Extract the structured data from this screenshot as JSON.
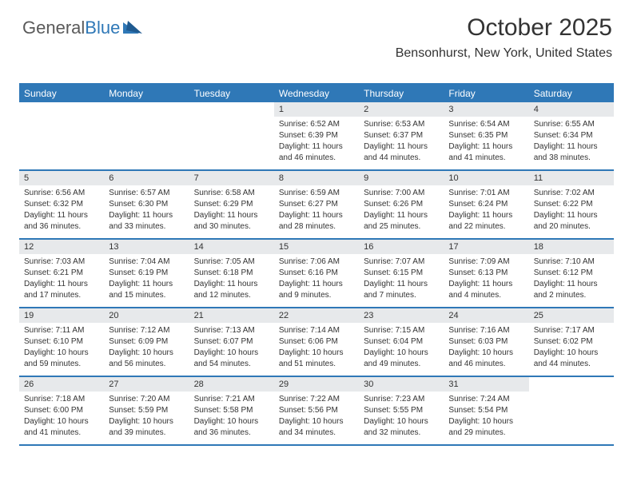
{
  "logo": {
    "general": "General",
    "blue": "Blue"
  },
  "title": "October 2025",
  "location": "Bensonhurst, New York, United States",
  "colors": {
    "accent": "#2f78b7",
    "dayBar": "#e7e9eb",
    "text": "#333333",
    "bg": "#ffffff"
  },
  "dow": [
    "Sunday",
    "Monday",
    "Tuesday",
    "Wednesday",
    "Thursday",
    "Friday",
    "Saturday"
  ],
  "weeks": [
    [
      {
        "blank": true
      },
      {
        "blank": true
      },
      {
        "blank": true
      },
      {
        "n": "1",
        "sr": "Sunrise: 6:52 AM",
        "ss": "Sunset: 6:39 PM",
        "d1": "Daylight: 11 hours",
        "d2": "and 46 minutes."
      },
      {
        "n": "2",
        "sr": "Sunrise: 6:53 AM",
        "ss": "Sunset: 6:37 PM",
        "d1": "Daylight: 11 hours",
        "d2": "and 44 minutes."
      },
      {
        "n": "3",
        "sr": "Sunrise: 6:54 AM",
        "ss": "Sunset: 6:35 PM",
        "d1": "Daylight: 11 hours",
        "d2": "and 41 minutes."
      },
      {
        "n": "4",
        "sr": "Sunrise: 6:55 AM",
        "ss": "Sunset: 6:34 PM",
        "d1": "Daylight: 11 hours",
        "d2": "and 38 minutes."
      }
    ],
    [
      {
        "n": "5",
        "sr": "Sunrise: 6:56 AM",
        "ss": "Sunset: 6:32 PM",
        "d1": "Daylight: 11 hours",
        "d2": "and 36 minutes."
      },
      {
        "n": "6",
        "sr": "Sunrise: 6:57 AM",
        "ss": "Sunset: 6:30 PM",
        "d1": "Daylight: 11 hours",
        "d2": "and 33 minutes."
      },
      {
        "n": "7",
        "sr": "Sunrise: 6:58 AM",
        "ss": "Sunset: 6:29 PM",
        "d1": "Daylight: 11 hours",
        "d2": "and 30 minutes."
      },
      {
        "n": "8",
        "sr": "Sunrise: 6:59 AM",
        "ss": "Sunset: 6:27 PM",
        "d1": "Daylight: 11 hours",
        "d2": "and 28 minutes."
      },
      {
        "n": "9",
        "sr": "Sunrise: 7:00 AM",
        "ss": "Sunset: 6:26 PM",
        "d1": "Daylight: 11 hours",
        "d2": "and 25 minutes."
      },
      {
        "n": "10",
        "sr": "Sunrise: 7:01 AM",
        "ss": "Sunset: 6:24 PM",
        "d1": "Daylight: 11 hours",
        "d2": "and 22 minutes."
      },
      {
        "n": "11",
        "sr": "Sunrise: 7:02 AM",
        "ss": "Sunset: 6:22 PM",
        "d1": "Daylight: 11 hours",
        "d2": "and 20 minutes."
      }
    ],
    [
      {
        "n": "12",
        "sr": "Sunrise: 7:03 AM",
        "ss": "Sunset: 6:21 PM",
        "d1": "Daylight: 11 hours",
        "d2": "and 17 minutes."
      },
      {
        "n": "13",
        "sr": "Sunrise: 7:04 AM",
        "ss": "Sunset: 6:19 PM",
        "d1": "Daylight: 11 hours",
        "d2": "and 15 minutes."
      },
      {
        "n": "14",
        "sr": "Sunrise: 7:05 AM",
        "ss": "Sunset: 6:18 PM",
        "d1": "Daylight: 11 hours",
        "d2": "and 12 minutes."
      },
      {
        "n": "15",
        "sr": "Sunrise: 7:06 AM",
        "ss": "Sunset: 6:16 PM",
        "d1": "Daylight: 11 hours",
        "d2": "and 9 minutes."
      },
      {
        "n": "16",
        "sr": "Sunrise: 7:07 AM",
        "ss": "Sunset: 6:15 PM",
        "d1": "Daylight: 11 hours",
        "d2": "and 7 minutes."
      },
      {
        "n": "17",
        "sr": "Sunrise: 7:09 AM",
        "ss": "Sunset: 6:13 PM",
        "d1": "Daylight: 11 hours",
        "d2": "and 4 minutes."
      },
      {
        "n": "18",
        "sr": "Sunrise: 7:10 AM",
        "ss": "Sunset: 6:12 PM",
        "d1": "Daylight: 11 hours",
        "d2": "and 2 minutes."
      }
    ],
    [
      {
        "n": "19",
        "sr": "Sunrise: 7:11 AM",
        "ss": "Sunset: 6:10 PM",
        "d1": "Daylight: 10 hours",
        "d2": "and 59 minutes."
      },
      {
        "n": "20",
        "sr": "Sunrise: 7:12 AM",
        "ss": "Sunset: 6:09 PM",
        "d1": "Daylight: 10 hours",
        "d2": "and 56 minutes."
      },
      {
        "n": "21",
        "sr": "Sunrise: 7:13 AM",
        "ss": "Sunset: 6:07 PM",
        "d1": "Daylight: 10 hours",
        "d2": "and 54 minutes."
      },
      {
        "n": "22",
        "sr": "Sunrise: 7:14 AM",
        "ss": "Sunset: 6:06 PM",
        "d1": "Daylight: 10 hours",
        "d2": "and 51 minutes."
      },
      {
        "n": "23",
        "sr": "Sunrise: 7:15 AM",
        "ss": "Sunset: 6:04 PM",
        "d1": "Daylight: 10 hours",
        "d2": "and 49 minutes."
      },
      {
        "n": "24",
        "sr": "Sunrise: 7:16 AM",
        "ss": "Sunset: 6:03 PM",
        "d1": "Daylight: 10 hours",
        "d2": "and 46 minutes."
      },
      {
        "n": "25",
        "sr": "Sunrise: 7:17 AM",
        "ss": "Sunset: 6:02 PM",
        "d1": "Daylight: 10 hours",
        "d2": "and 44 minutes."
      }
    ],
    [
      {
        "n": "26",
        "sr": "Sunrise: 7:18 AM",
        "ss": "Sunset: 6:00 PM",
        "d1": "Daylight: 10 hours",
        "d2": "and 41 minutes."
      },
      {
        "n": "27",
        "sr": "Sunrise: 7:20 AM",
        "ss": "Sunset: 5:59 PM",
        "d1": "Daylight: 10 hours",
        "d2": "and 39 minutes."
      },
      {
        "n": "28",
        "sr": "Sunrise: 7:21 AM",
        "ss": "Sunset: 5:58 PM",
        "d1": "Daylight: 10 hours",
        "d2": "and 36 minutes."
      },
      {
        "n": "29",
        "sr": "Sunrise: 7:22 AM",
        "ss": "Sunset: 5:56 PM",
        "d1": "Daylight: 10 hours",
        "d2": "and 34 minutes."
      },
      {
        "n": "30",
        "sr": "Sunrise: 7:23 AM",
        "ss": "Sunset: 5:55 PM",
        "d1": "Daylight: 10 hours",
        "d2": "and 32 minutes."
      },
      {
        "n": "31",
        "sr": "Sunrise: 7:24 AM",
        "ss": "Sunset: 5:54 PM",
        "d1": "Daylight: 10 hours",
        "d2": "and 29 minutes."
      },
      {
        "blank": true
      }
    ]
  ]
}
